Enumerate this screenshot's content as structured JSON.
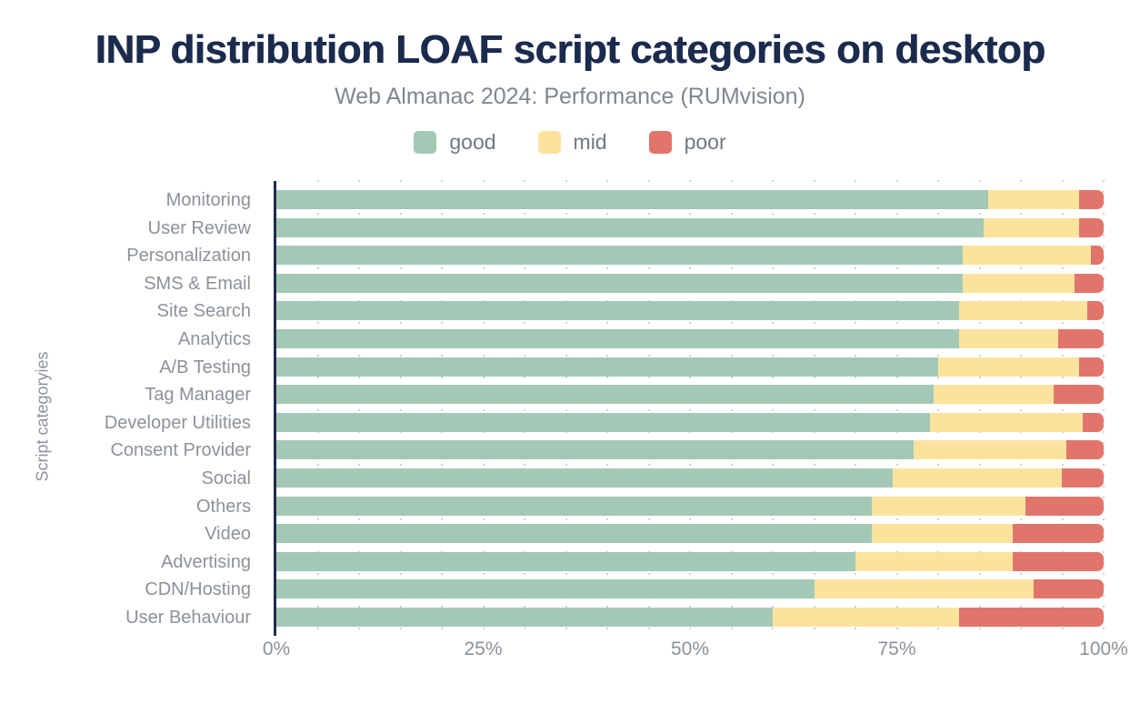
{
  "title": "INP distribution LOAF script categories on desktop",
  "subtitle": "Web Almanac 2024: Performance (RUMvision)",
  "y_axis_title": "Script categoryies",
  "legend": {
    "items": [
      {
        "label": "good",
        "color": "#a3c9b6"
      },
      {
        "label": "mid",
        "color": "#fce39d"
      },
      {
        "label": "poor",
        "color": "#e2756b"
      }
    ]
  },
  "colors": {
    "good": "#a3c9b6",
    "mid": "#fce39d",
    "poor": "#e2756b",
    "title_navy": "#1b2b4d",
    "axis_line": "#1e2c4e",
    "label_gray": "#8b9299",
    "gridline": "#ccd2d7"
  },
  "chart_data": {
    "type": "bar",
    "orientation": "horizontal",
    "stacked": true,
    "title": "INP distribution LOAF script categories on desktop",
    "subtitle": "Web Almanac 2024: Performance (RUMvision)",
    "xlabel": "",
    "ylabel": "Script categoryies",
    "xlim": [
      0,
      100
    ],
    "x_ticks": [
      "0%",
      "25%",
      "50%",
      "75%",
      "100%"
    ],
    "x_tick_values": [
      0,
      25,
      50,
      75,
      100
    ],
    "grid": "dotted vertical lines every 5%",
    "legend_position": "top",
    "unit": "percent",
    "categories": [
      "Monitoring",
      "User Review",
      "Personalization",
      "SMS & Email",
      "Site Search",
      "Analytics",
      "A/B Testing",
      "Tag Manager",
      "Developer Utilities",
      "Consent Provider",
      "Social",
      "Others",
      "Video",
      "Advertising",
      "CDN/Hosting",
      "User Behaviour"
    ],
    "series": [
      {
        "name": "good",
        "color": "#a3c9b6",
        "values": [
          86,
          85.5,
          83,
          83,
          82.5,
          82.5,
          80,
          79.5,
          79,
          77,
          74.5,
          72,
          72,
          70,
          65,
          60
        ]
      },
      {
        "name": "mid",
        "color": "#fce39d",
        "values": [
          11,
          11.5,
          15.5,
          13.5,
          15.5,
          12,
          17,
          14.5,
          18.5,
          18.5,
          20.5,
          18.5,
          17,
          19,
          26.5,
          22.5
        ]
      },
      {
        "name": "poor",
        "color": "#e2756b",
        "values": [
          3,
          3,
          1.5,
          3.5,
          2,
          5.5,
          3,
          6,
          2.5,
          4.5,
          5,
          9.5,
          11,
          11,
          8.5,
          17.5
        ]
      }
    ]
  }
}
